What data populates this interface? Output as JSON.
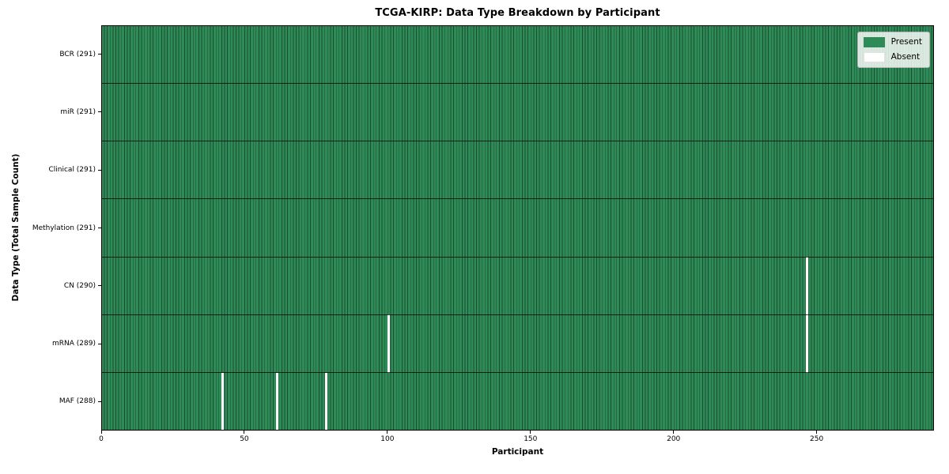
{
  "chart_data": {
    "type": "heatmap",
    "title": "TCGA-KIRP: Data Type Breakdown by Participant",
    "xlabel": "Participant",
    "ylabel": "Data Type (Total Sample Count)",
    "x_ticks": [
      0,
      50,
      100,
      150,
      200,
      250
    ],
    "x_range": [
      0,
      291
    ],
    "n_participants": 291,
    "grid": false,
    "legend_position": "upper right",
    "rows": [
      {
        "label": "BCR (291)",
        "data_type": "BCR",
        "present_count": 291,
        "absent_participants": []
      },
      {
        "label": "miR (291)",
        "data_type": "miR",
        "present_count": 291,
        "absent_participants": []
      },
      {
        "label": "Clinical (291)",
        "data_type": "Clinical",
        "present_count": 291,
        "absent_participants": []
      },
      {
        "label": "Methylation (291)",
        "data_type": "Methylation",
        "present_count": 291,
        "absent_participants": []
      },
      {
        "label": "CN (290)",
        "data_type": "CN",
        "present_count": 290,
        "absent_participants": [
          246
        ]
      },
      {
        "label": "mRNA (289)",
        "data_type": "mRNA",
        "present_count": 289,
        "absent_participants": [
          100,
          246
        ]
      },
      {
        "label": "MAF (288)",
        "data_type": "MAF",
        "present_count": 288,
        "absent_participants": [
          42,
          61,
          78
        ]
      }
    ],
    "legend": [
      {
        "label": "Present",
        "color": "#2e8b57"
      },
      {
        "label": "Absent",
        "color": "#ffffff"
      }
    ],
    "colors": {
      "present": "#2e8b57",
      "absent": "#ffffff"
    }
  }
}
